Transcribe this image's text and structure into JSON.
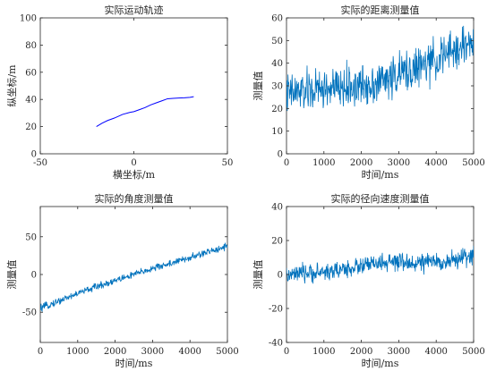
{
  "chart_data": [
    {
      "type": "line",
      "title": "实际运动轨迹",
      "xlabel": "横坐标/m",
      "ylabel": "纵坐标/m",
      "xlim": [
        -50,
        50
      ],
      "ylim": [
        0,
        100
      ],
      "xticks": [
        -50,
        0,
        50
      ],
      "yticks": [
        0,
        20,
        40,
        60,
        80,
        100
      ],
      "grid": false,
      "color": "#0000ff",
      "series": [
        {
          "x": [
            -20,
            -17,
            -14,
            -10,
            -6,
            -2,
            0,
            3,
            6,
            9,
            12,
            15,
            18,
            21,
            24,
            27,
            30,
            32
          ],
          "y": [
            20,
            22.5,
            24.5,
            26.5,
            29,
            30.5,
            31,
            32.5,
            34,
            36,
            37.5,
            39,
            40.5,
            40.8,
            41,
            41.2,
            41.5,
            42
          ]
        }
      ]
    },
    {
      "type": "line",
      "title": "实际的距离测量值",
      "xlabel": "时间/ms",
      "ylabel": "测量值",
      "xlim": [
        0,
        5000
      ],
      "ylim": [
        0,
        60
      ],
      "xticks": [
        0,
        1000,
        2000,
        3000,
        4000,
        5000
      ],
      "yticks": [
        0,
        10,
        20,
        30,
        40,
        50,
        60
      ],
      "grid": false,
      "color": "#0072bd",
      "series": [
        {
          "x": [
            0,
            250,
            500,
            750,
            1000,
            1250,
            1500,
            1750,
            2000,
            2250,
            2500,
            2750,
            3000,
            3250,
            3500,
            3750,
            4000,
            4250,
            4500,
            4750,
            5000
          ],
          "y": [
            26,
            27,
            27.5,
            28,
            28.5,
            28.8,
            29,
            29.5,
            30,
            31,
            32,
            33.5,
            35,
            36.5,
            38,
            39.5,
            41.5,
            43.5,
            45.5,
            47.5,
            50
          ]
        }
      ]
    },
    {
      "type": "line",
      "title": "实际的角度测量值",
      "xlabel": "时间/ms",
      "ylabel": "测量值",
      "xlim": [
        0,
        5000
      ],
      "ylim": [
        -90,
        90
      ],
      "xticks": [
        0,
        1000,
        2000,
        3000,
        4000,
        5000
      ],
      "yticks": [
        -50,
        0,
        50
      ],
      "grid": false,
      "color": "#0072bd",
      "series": [
        {
          "x": [
            0,
            250,
            500,
            750,
            1000,
            1250,
            1500,
            1750,
            2000,
            2250,
            2500,
            2750,
            3000,
            3250,
            3500,
            3750,
            4000,
            4250,
            4500,
            4750,
            5000
          ],
          "y": [
            -45,
            -40,
            -35,
            -30,
            -25,
            -20.5,
            -16,
            -12,
            -8,
            -4,
            0,
            4,
            8,
            11.5,
            15,
            18.5,
            22,
            26,
            30,
            34,
            38
          ]
        }
      ]
    },
    {
      "type": "line",
      "title": "实际的径向速度测量值",
      "xlabel": "时间/ms",
      "ylabel": "测量值",
      "xlim": [
        0,
        5000
      ],
      "ylim": [
        -40,
        40
      ],
      "xticks": [
        0,
        1000,
        2000,
        3000,
        4000,
        5000
      ],
      "yticks": [
        -40,
        -20,
        0,
        20,
        40
      ],
      "grid": false,
      "color": "#0072bd",
      "series": [
        {
          "x": [
            0,
            250,
            500,
            750,
            1000,
            1250,
            1500,
            1750,
            2000,
            2250,
            2500,
            2750,
            3000,
            3250,
            3500,
            3750,
            4000,
            4250,
            4500,
            4750,
            5000
          ],
          "y": [
            -1,
            0,
            0.5,
            1,
            1.5,
            2,
            3,
            4,
            5,
            6,
            6.5,
            7,
            7,
            6.5,
            7,
            7,
            7.5,
            7.5,
            8.5,
            10,
            12
          ]
        }
      ]
    }
  ]
}
